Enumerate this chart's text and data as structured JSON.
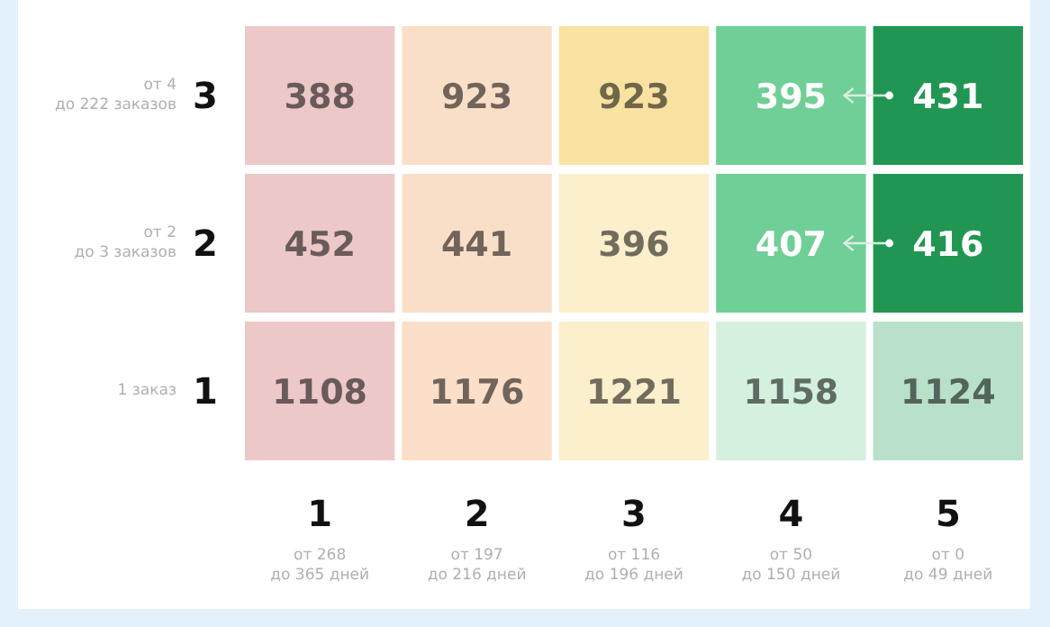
{
  "chart_data": {
    "type": "heatmap",
    "categories": [
      "1",
      "2",
      "3",
      "4",
      "5"
    ],
    "y_categories": [
      "3",
      "2",
      "1"
    ],
    "cells": [
      [
        388,
        923,
        923,
        395,
        431
      ],
      [
        452,
        441,
        396,
        407,
        416
      ],
      [
        1108,
        1176,
        1221,
        1158,
        1124
      ]
    ],
    "colors": [
      [
        "#ecc8c8",
        "#fadfc8",
        "#f9e2a2",
        "#6fcf97",
        "#219653"
      ],
      [
        "#ecc8c8",
        "#fadfc8",
        "#fcefcc",
        "#6fcf97",
        "#219653"
      ],
      [
        "#ecc8c8",
        "#fbdfc9",
        "#fcefcc",
        "#d4f0de",
        "#b9e0c9"
      ]
    ],
    "data_labels": true,
    "annotations": [
      "от 268\nдо 365 дней",
      "от 197\nдо 216 дней",
      "от 116\nдо 196 дней",
      "от 50\nдо 150 дней",
      "от 0\nдо 49 дней",
      "от 4\nдо 222 заказов",
      "от 2\nдо 3 заказов",
      "1 заказ"
    ]
  }
}
